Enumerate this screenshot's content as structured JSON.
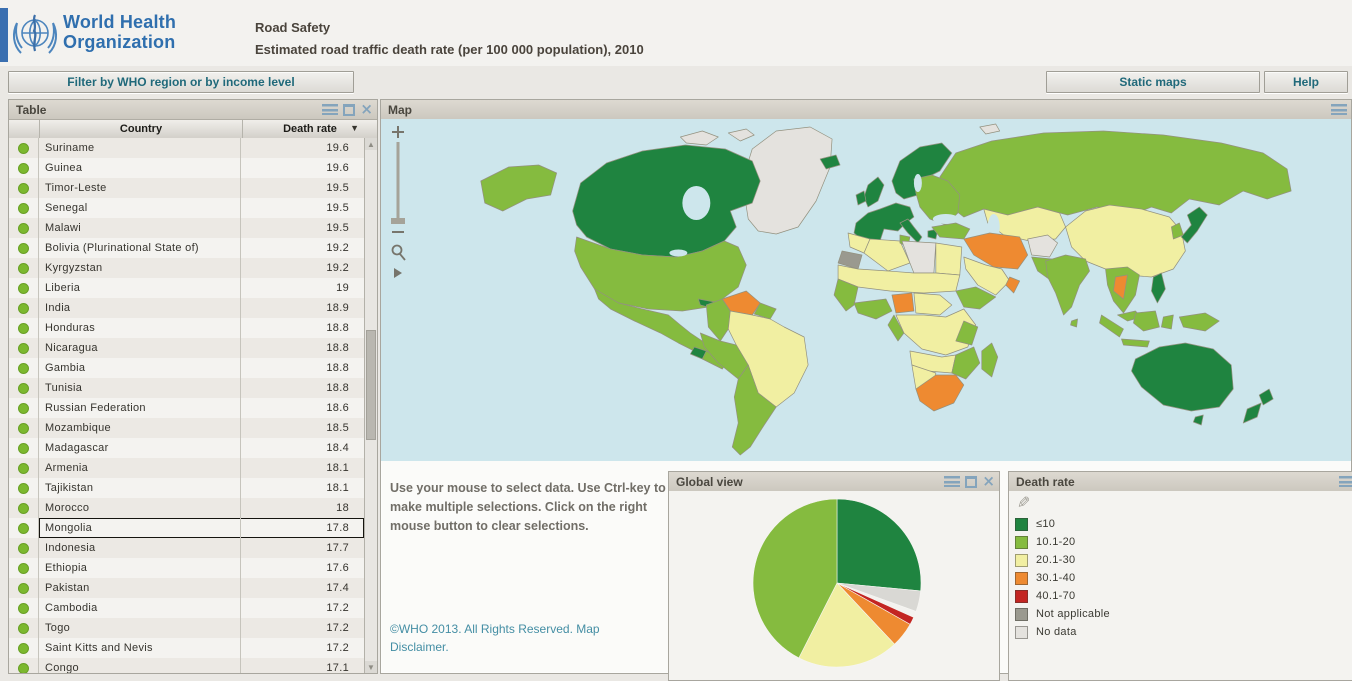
{
  "header": {
    "logo_line1": "World Health",
    "logo_line2": "Organization",
    "title": "Road Safety",
    "subtitle": "Estimated road traffic death rate (per 100 000 population), 2010"
  },
  "toolbar": {
    "filter_button": "Filter by WHO region or by income level",
    "static_maps_button": "Static maps",
    "help_button": "Help"
  },
  "icons": {
    "sort_desc": "▼",
    "scroll_up": "▲",
    "scroll_down": "▼",
    "close": "×",
    "pencil": "✎",
    "zoom_in": "+",
    "zoom_out": "−",
    "pan_right": "▶"
  },
  "table_panel": {
    "title": "Table",
    "columns": {
      "country": "Country",
      "death_rate": "Death rate"
    },
    "selected_country": "Mongolia",
    "rows": [
      {
        "country": "Suriname",
        "rate": "19.6",
        "selected": false
      },
      {
        "country": "Guinea",
        "rate": "19.6",
        "selected": false
      },
      {
        "country": "Timor-Leste",
        "rate": "19.5",
        "selected": false
      },
      {
        "country": "Senegal",
        "rate": "19.5",
        "selected": false
      },
      {
        "country": "Malawi",
        "rate": "19.5",
        "selected": false
      },
      {
        "country": "Bolivia (Plurinational State of)",
        "rate": "19.2",
        "selected": false
      },
      {
        "country": "Kyrgyzstan",
        "rate": "19.2",
        "selected": false
      },
      {
        "country": "Liberia",
        "rate": "19",
        "selected": false
      },
      {
        "country": "India",
        "rate": "18.9",
        "selected": false
      },
      {
        "country": "Honduras",
        "rate": "18.8",
        "selected": false
      },
      {
        "country": "Nicaragua",
        "rate": "18.8",
        "selected": false
      },
      {
        "country": "Gambia",
        "rate": "18.8",
        "selected": false
      },
      {
        "country": "Tunisia",
        "rate": "18.8",
        "selected": false
      },
      {
        "country": "Russian Federation",
        "rate": "18.6",
        "selected": false
      },
      {
        "country": "Mozambique",
        "rate": "18.5",
        "selected": false
      },
      {
        "country": "Madagascar",
        "rate": "18.4",
        "selected": false
      },
      {
        "country": "Armenia",
        "rate": "18.1",
        "selected": false
      },
      {
        "country": "Tajikistan",
        "rate": "18.1",
        "selected": false
      },
      {
        "country": "Morocco",
        "rate": "18",
        "selected": false
      },
      {
        "country": "Mongolia",
        "rate": "17.8",
        "selected": true
      },
      {
        "country": "Indonesia",
        "rate": "17.7",
        "selected": false
      },
      {
        "country": "Ethiopia",
        "rate": "17.6",
        "selected": false
      },
      {
        "country": "Pakistan",
        "rate": "17.4",
        "selected": false
      },
      {
        "country": "Cambodia",
        "rate": "17.2",
        "selected": false
      },
      {
        "country": "Togo",
        "rate": "17.2",
        "selected": false
      },
      {
        "country": "Saint Kitts and Nevis",
        "rate": "17.2",
        "selected": false
      },
      {
        "country": "Congo",
        "rate": "17.1",
        "selected": false
      }
    ]
  },
  "map_panel": {
    "title": "Map",
    "instructions": "Use your mouse to select data.  Use Ctrl-key to make multiple selections. Click on the right mouse button to clear selections.",
    "copyright": "©WHO 2013. All Rights Reserved. Map Disclaimer."
  },
  "global_view_panel": {
    "title": "Global view"
  },
  "legend_panel": {
    "title": "Death rate",
    "items": [
      {
        "label": "≤10",
        "category": "le10"
      },
      {
        "label": "10.1-20",
        "category": "10-20"
      },
      {
        "label": "20.1-30",
        "category": "20-30"
      },
      {
        "label": "30.1-40",
        "category": "30-40"
      },
      {
        "label": "40.1-70",
        "category": "40-70"
      },
      {
        "label": "Not applicable",
        "category": "not-applicable"
      },
      {
        "label": "No data",
        "category": "no-data"
      }
    ]
  },
  "colors": {
    "categories": {
      "le10": "#1f8440",
      "10-20": "#85bb3f",
      "20-30": "#f1efa2",
      "30-40": "#ee8a31",
      "40-70": "#c32522",
      "not-applicable": "#9a998f",
      "no-data": "#e4e2de"
    },
    "ocean": "#cde6ec",
    "accent_teal": "#20697a",
    "logo_blue": "#2f6fae",
    "dot_green": "#7cb82f",
    "copyright_teal": "#448ea4"
  },
  "chart_data": [
    {
      "type": "heatmap",
      "subtype": "choropleth-world-map",
      "title": "Map",
      "legend_title": "Death rate",
      "legend_position": "bottom-right",
      "units": "deaths per 100 000 population, 2010",
      "regions": {
        "greenland": "no-data",
        "arctic-islands-1": "no-data",
        "arctic-islands-2": "no-data",
        "canada": "le10",
        "alaska": "10-20",
        "usa": "10-20",
        "mexico": "10-20",
        "guatemala": "le10",
        "central-america": "10-20",
        "cuba": "le10",
        "hispaniola": "40-70",
        "jamaica": "10-20",
        "venezuela": "30-40",
        "guyanas": "10-20",
        "colombia": "10-20",
        "brazil": "20-30",
        "peru": "10-20",
        "chile-argentina": "10-20",
        "iceland": "le10",
        "uk": "le10",
        "ireland": "le10",
        "scandinavia": "le10",
        "iberia-france-germany": "le10",
        "italy": "le10",
        "greece": "le10",
        "eastern-europe": "10-20",
        "russia": "10-20",
        "svalbard": "no-data",
        "kazakhstan-central-asia": "20-30",
        "china-mongolia": "20-30",
        "turkey": "10-20",
        "iran-iraq": "30-40",
        "afghanistan": "no-data",
        "pakistan": "10-20",
        "saudi-arabia": "20-30",
        "oman": "30-40",
        "india": "10-20",
        "sri-lanka": "10-20",
        "morocco": "20-30",
        "western-sahara": "not-applicable",
        "algeria": "20-30",
        "tunisia": "10-20",
        "libya": "no-data",
        "egypt": "20-30",
        "sahel-band": "20-30",
        "west-africa-coast": "10-20",
        "gulf-coast": "10-20",
        "nigeria": "30-40",
        "cameroon-car": "20-30",
        "ethiopia-horn": "10-20",
        "drc-east-africa": "20-30",
        "congo-gabon": "10-20",
        "kenya-tanzania": "10-20",
        "angola-zambia": "20-30",
        "zimbabwe-mozambique": "10-20",
        "namibia-botswana": "20-30",
        "south-africa": "30-40",
        "madagascar": "10-20",
        "indochina": "10-20",
        "thailand": "30-40",
        "malaysia": "10-20",
        "sumatra": "10-20",
        "java": "10-20",
        "borneo": "10-20",
        "sulawesi": "10-20",
        "new-guinea": "10-20",
        "philippines": "le10",
        "korea": "10-20",
        "japan": "le10",
        "australia": "le10",
        "tasmania": "le10",
        "new-zealand-north": "le10",
        "new-zealand-south": "le10"
      }
    },
    {
      "type": "pie",
      "title": "Global view",
      "note": "share of countries by death-rate class; slices clockwise from 12 o'clock; values approximate percent read from pie",
      "slices": [
        {
          "label": "≤10",
          "value": 26.5,
          "color": "#1f8440"
        },
        {
          "label": "No data",
          "value": 4.0,
          "color": "#d9d8d4"
        },
        {
          "label": "Not applicable",
          "value": 1.2,
          "color": "#f3f2ef"
        },
        {
          "label": "40.1-70",
          "value": 1.5,
          "color": "#c32522"
        },
        {
          "label": "30.1-40",
          "value": 4.8,
          "color": "#ee8a31"
        },
        {
          "label": "20.1-30",
          "value": 19.5,
          "color": "#f1efa2"
        },
        {
          "label": "10.1-20",
          "value": 42.5,
          "color": "#85bb3f"
        }
      ]
    }
  ]
}
